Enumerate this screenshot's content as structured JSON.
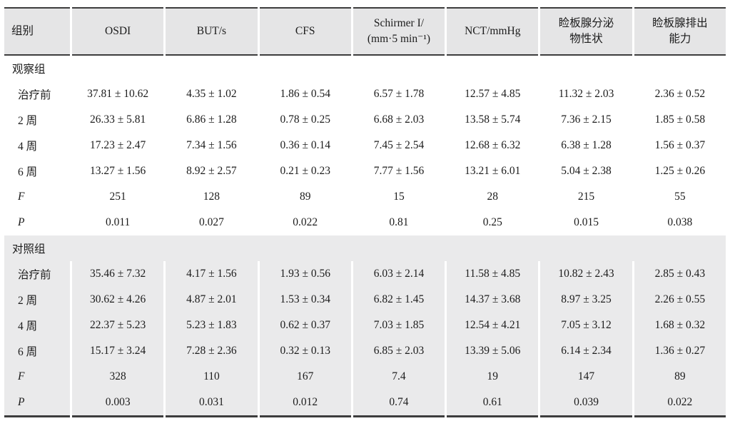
{
  "table": {
    "colors": {
      "header_bg": "#e5e5e6",
      "section_alt_bg": "#eaeaeb",
      "border": "#3d3d3d",
      "text": "#1c1c1c"
    },
    "columns": [
      {
        "key": "group",
        "line1": "组别",
        "line2": ""
      },
      {
        "key": "osdi",
        "line1": "OSDI",
        "line2": ""
      },
      {
        "key": "but",
        "line1": "BUT/s",
        "line2": ""
      },
      {
        "key": "cfs",
        "line1": "CFS",
        "line2": ""
      },
      {
        "key": "schirmer",
        "line1": "Schirmer I/",
        "line2": "(mm·5 min⁻¹)"
      },
      {
        "key": "nct",
        "line1": "NCT/mmHg",
        "line2": ""
      },
      {
        "key": "secretion",
        "line1": "睑板腺分泌",
        "line2": "物性状"
      },
      {
        "key": "excretion",
        "line1": "睑板腺排出",
        "line2": "能力"
      }
    ],
    "sections": [
      {
        "name": "观察组",
        "rows": [
          {
            "label": "治疗前",
            "values": [
              "37.81 ± 10.62",
              "4.35 ± 1.02",
              "1.86 ± 0.54",
              "6.57 ± 1.78",
              "12.57 ± 4.85",
              "11.32 ± 2.03",
              "2.36 ± 0.52"
            ]
          },
          {
            "label": "2 周",
            "values": [
              "26.33 ± 5.81",
              "6.86 ± 1.28",
              "0.78 ± 0.25",
              "6.68 ± 2.03",
              "13.58 ± 5.74",
              "7.36 ± 2.15",
              "1.85 ± 0.58"
            ]
          },
          {
            "label": "4 周",
            "values": [
              "17.23 ± 2.47",
              "7.34 ± 1.56",
              "0.36 ± 0.14",
              "7.45 ± 2.54",
              "12.68 ± 6.32",
              "6.38 ± 1.28",
              "1.56 ± 0.37"
            ]
          },
          {
            "label": "6 周",
            "values": [
              "13.27 ± 1.56",
              "8.92 ± 2.57",
              "0.21 ± 0.23",
              "7.77 ± 1.56",
              "13.21 ± 6.01",
              "5.04 ± 2.38",
              "1.25 ± 0.26"
            ]
          },
          {
            "label": "F",
            "values": [
              "251",
              "128",
              "89",
              "15",
              "28",
              "215",
              "55"
            ]
          },
          {
            "label": "P",
            "values": [
              "0.011",
              "0.027",
              "0.022",
              "0.81",
              "0.25",
              "0.015",
              "0.038"
            ]
          }
        ]
      },
      {
        "name": "对照组",
        "rows": [
          {
            "label": "治疗前",
            "values": [
              "35.46 ± 7.32",
              "4.17 ± 1.56",
              "1.93 ± 0.56",
              "6.03 ± 2.14",
              "11.58 ± 4.85",
              "10.82 ± 2.43",
              "2.85 ± 0.43"
            ]
          },
          {
            "label": "2 周",
            "values": [
              "30.62 ± 4.26",
              "4.87 ± 2.01",
              "1.53 ± 0.34",
              "6.82 ± 1.45",
              "14.37 ± 3.68",
              "8.97 ± 3.25",
              "2.26 ± 0.55"
            ]
          },
          {
            "label": "4 周",
            "values": [
              "22.37 ± 5.23",
              "5.23 ± 1.83",
              "0.62 ± 0.37",
              "7.03 ± 1.85",
              "12.54 ± 4.21",
              "7.05 ± 3.12",
              "1.68 ± 0.32"
            ]
          },
          {
            "label": "6 周",
            "values": [
              "15.17 ± 3.24",
              "7.28 ± 2.36",
              "0.32 ± 0.13",
              "6.85 ± 2.03",
              "13.39 ± 5.06",
              "6.14 ± 2.34",
              "1.36 ± 0.27"
            ]
          },
          {
            "label": "F",
            "values": [
              "328",
              "110",
              "167",
              "7.4",
              "19",
              "147",
              "89"
            ]
          },
          {
            "label": "P",
            "values": [
              "0.003",
              "0.031",
              "0.012",
              "0.74",
              "0.61",
              "0.039",
              "0.022"
            ]
          }
        ]
      }
    ]
  }
}
